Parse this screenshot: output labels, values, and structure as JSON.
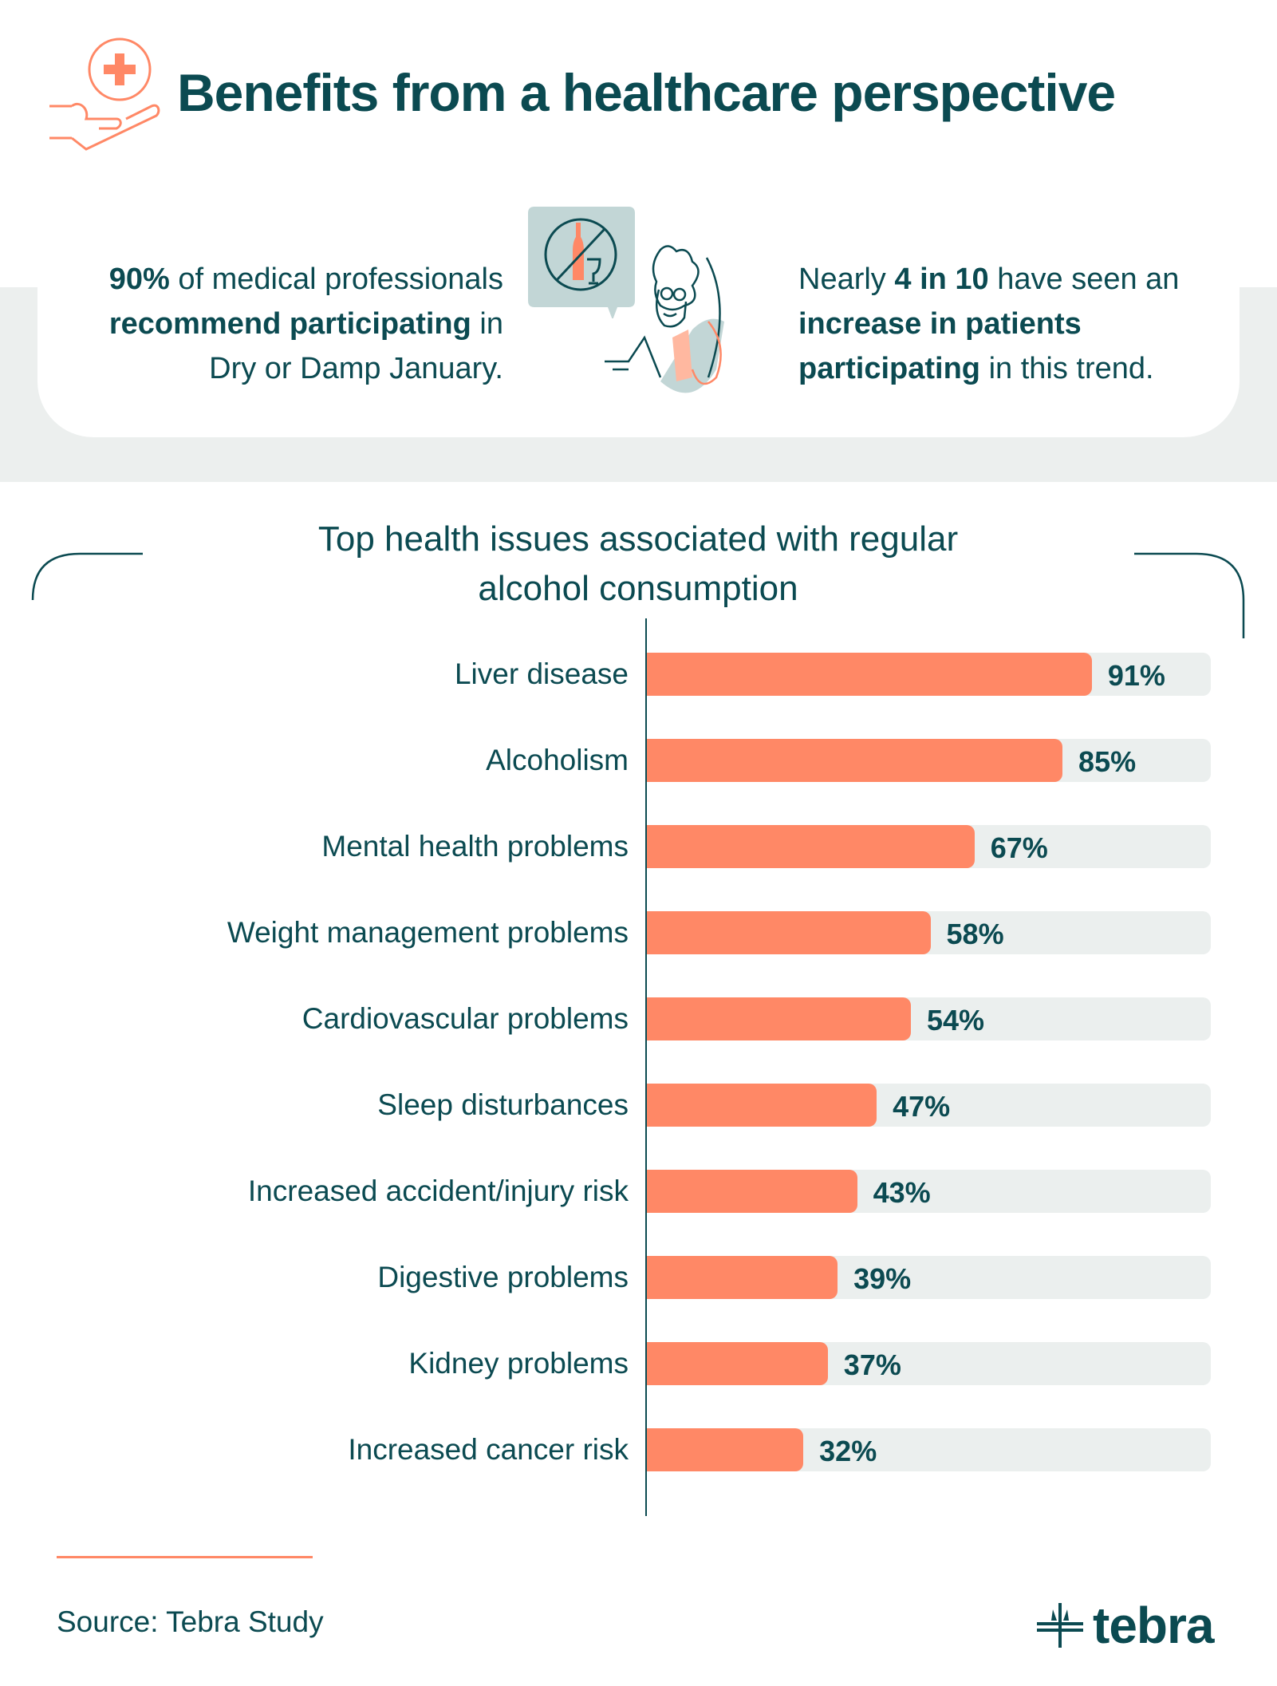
{
  "header": {
    "title": "Benefits from a healthcare perspective",
    "icon": "hand-medical-cross-icon"
  },
  "stats": {
    "left": {
      "bold1": "90%",
      "text1": " of medical professionals",
      "bold2": "recommend participating",
      "text2": " in",
      "text3": "Dry or Damp January."
    },
    "right": {
      "text1": "Nearly ",
      "bold1": "4 in 10",
      "text2": " have seen an",
      "bold2": "increase in patients",
      "bold3": "participating",
      "text3": " in this trend."
    }
  },
  "chart_data": {
    "type": "bar",
    "orientation": "horizontal",
    "title": "Top health issues associated with regular alcohol consumption",
    "title_lines": [
      "Top health issues associated with regular",
      "alcohol consumption"
    ],
    "categories": [
      "Liver disease",
      "Alcoholism",
      "Mental health problems",
      "Weight management problems",
      "Cardiovascular problems",
      "Sleep disturbances",
      "Increased accident/injury risk",
      "Digestive problems",
      "Kidney problems",
      "Increased cancer risk"
    ],
    "values": [
      91,
      85,
      67,
      58,
      54,
      47,
      43,
      39,
      37,
      32
    ],
    "value_labels": [
      "91%",
      "85%",
      "67%",
      "58%",
      "54%",
      "47%",
      "43%",
      "39%",
      "37%",
      "32%"
    ],
    "unit": "%",
    "colors": {
      "bar": "#ff8866",
      "track": "#ebefee",
      "text": "#0b4a51"
    }
  },
  "footer": {
    "source": "Source: Tebra Study",
    "logo": "tebra"
  }
}
